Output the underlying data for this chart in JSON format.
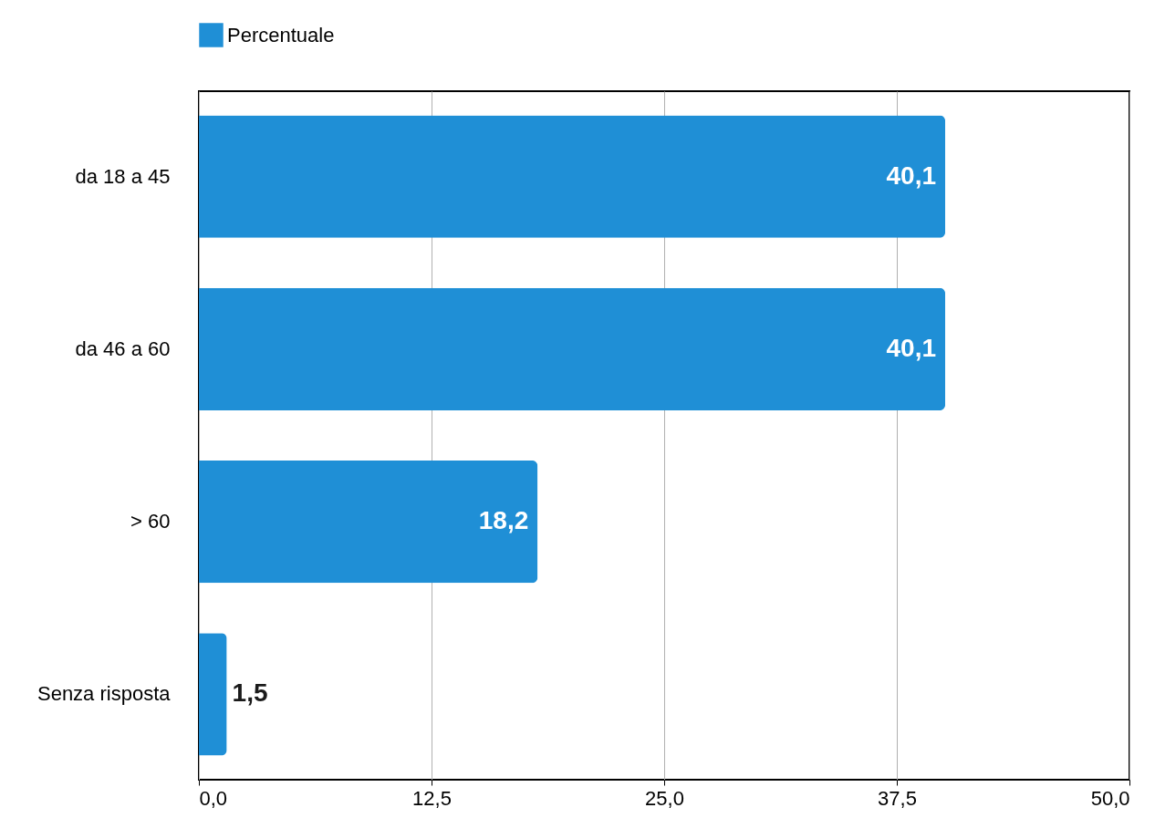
{
  "chart_data": {
    "type": "bar",
    "orientation": "horizontal",
    "categories": [
      "da 18 a 45",
      "da 46 a 60",
      "> 60",
      "Senza risposta"
    ],
    "series": [
      {
        "name": "Percentuale",
        "color": "#1f8fd6",
        "values": [
          40.1,
          40.1,
          18.2,
          1.5
        ],
        "value_labels": [
          "40,1",
          "40,1",
          "18,2",
          "1,5"
        ]
      }
    ],
    "xlim": [
      0,
      50
    ],
    "xticks": [
      {
        "value": 0,
        "label": "0,0"
      },
      {
        "value": 12.5,
        "label": "12,5"
      },
      {
        "value": 25,
        "label": "25,0"
      },
      {
        "value": 37.5,
        "label": "37,5"
      },
      {
        "value": 50,
        "label": "50,0"
      }
    ],
    "grid": "x",
    "legend": "top"
  }
}
